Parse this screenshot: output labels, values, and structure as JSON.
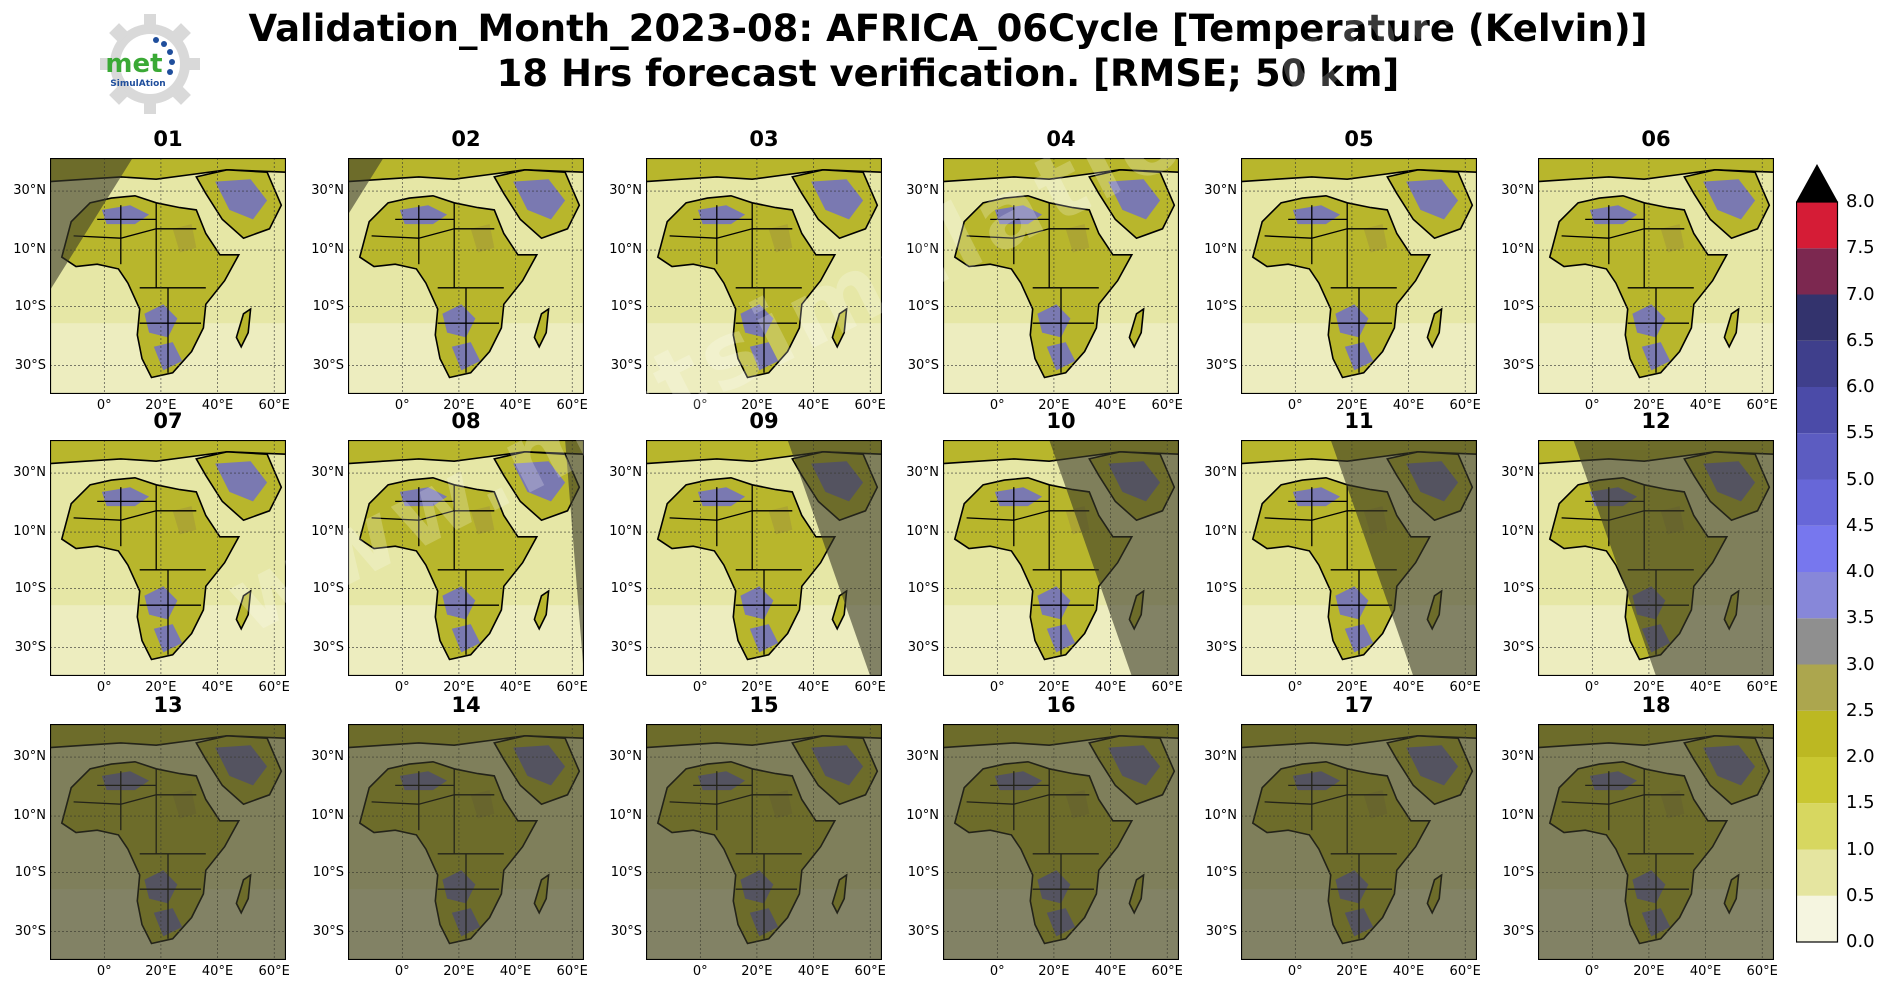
{
  "title": {
    "line1": "Validation_Month_2023-08: AFRICA_06Cycle [Temperature (Kelvin)]",
    "line2": "18 Hrs forecast verification.  [RMSE; 50 km]"
  },
  "logo": {
    "text_top": "met",
    "text_bottom": "SimulAtion",
    "icon": "gear-logo-icon"
  },
  "watermark": {
    "text": "www.metsimulation.com"
  },
  "colors": {
    "background": "#ffffff",
    "night_shade": "#3a3a2a",
    "ocean": "#e6e7a6",
    "ocean_light": "#f4f4d8",
    "land": "#b8b62c",
    "land_dark": "#a9a235",
    "high_error": "#6e6ec9",
    "border": "#000000"
  },
  "chart_data": {
    "type": "heatmap",
    "panel_titles": [
      "01",
      "02",
      "03",
      "04",
      "05",
      "06",
      "07",
      "08",
      "09",
      "10",
      "11",
      "12",
      "13",
      "14",
      "15",
      "16",
      "17",
      "18"
    ],
    "lat_tick_labels": [
      "30°N",
      "10°N",
      "10°S",
      "30°S"
    ],
    "lon_tick_labels": [
      "0°",
      "20°E",
      "40°E",
      "60°E"
    ],
    "colorbar": {
      "ticks": [
        "0.0",
        "0.5",
        "1.0",
        "1.5",
        "2.0",
        "2.5",
        "3.0",
        "3.5",
        "4.0",
        "4.5",
        "5.0",
        "5.5",
        "6.0",
        "6.5",
        "7.0",
        "7.5",
        "8.0"
      ],
      "bins": [
        0.0,
        0.5,
        1.0,
        1.5,
        2.0,
        2.5,
        3.0,
        3.5,
        4.0,
        4.5,
        5.0,
        5.5,
        6.0,
        6.5,
        7.0,
        7.5,
        8.0
      ],
      "colors": [
        "#f5f5e0",
        "#e5e5a0",
        "#d7d760",
        "#c9c731",
        "#bcb822",
        "#aca64e",
        "#8f8f8f",
        "#8787d9",
        "#7777ee",
        "#6767d8",
        "#5c5cc1",
        "#4b4ba8",
        "#3f3f8c",
        "#33336d",
        "#7c2850",
        "#d51c36",
        "#85101a"
      ],
      "extend": "max",
      "range": [
        0,
        8
      ]
    },
    "night_shading_fraction": [
      0.35,
      0.15,
      0,
      0,
      0,
      0,
      0,
      0.08,
      0.4,
      0.55,
      0.62,
      0.85,
      0.9,
      0.95,
      1,
      1,
      1,
      1
    ]
  }
}
